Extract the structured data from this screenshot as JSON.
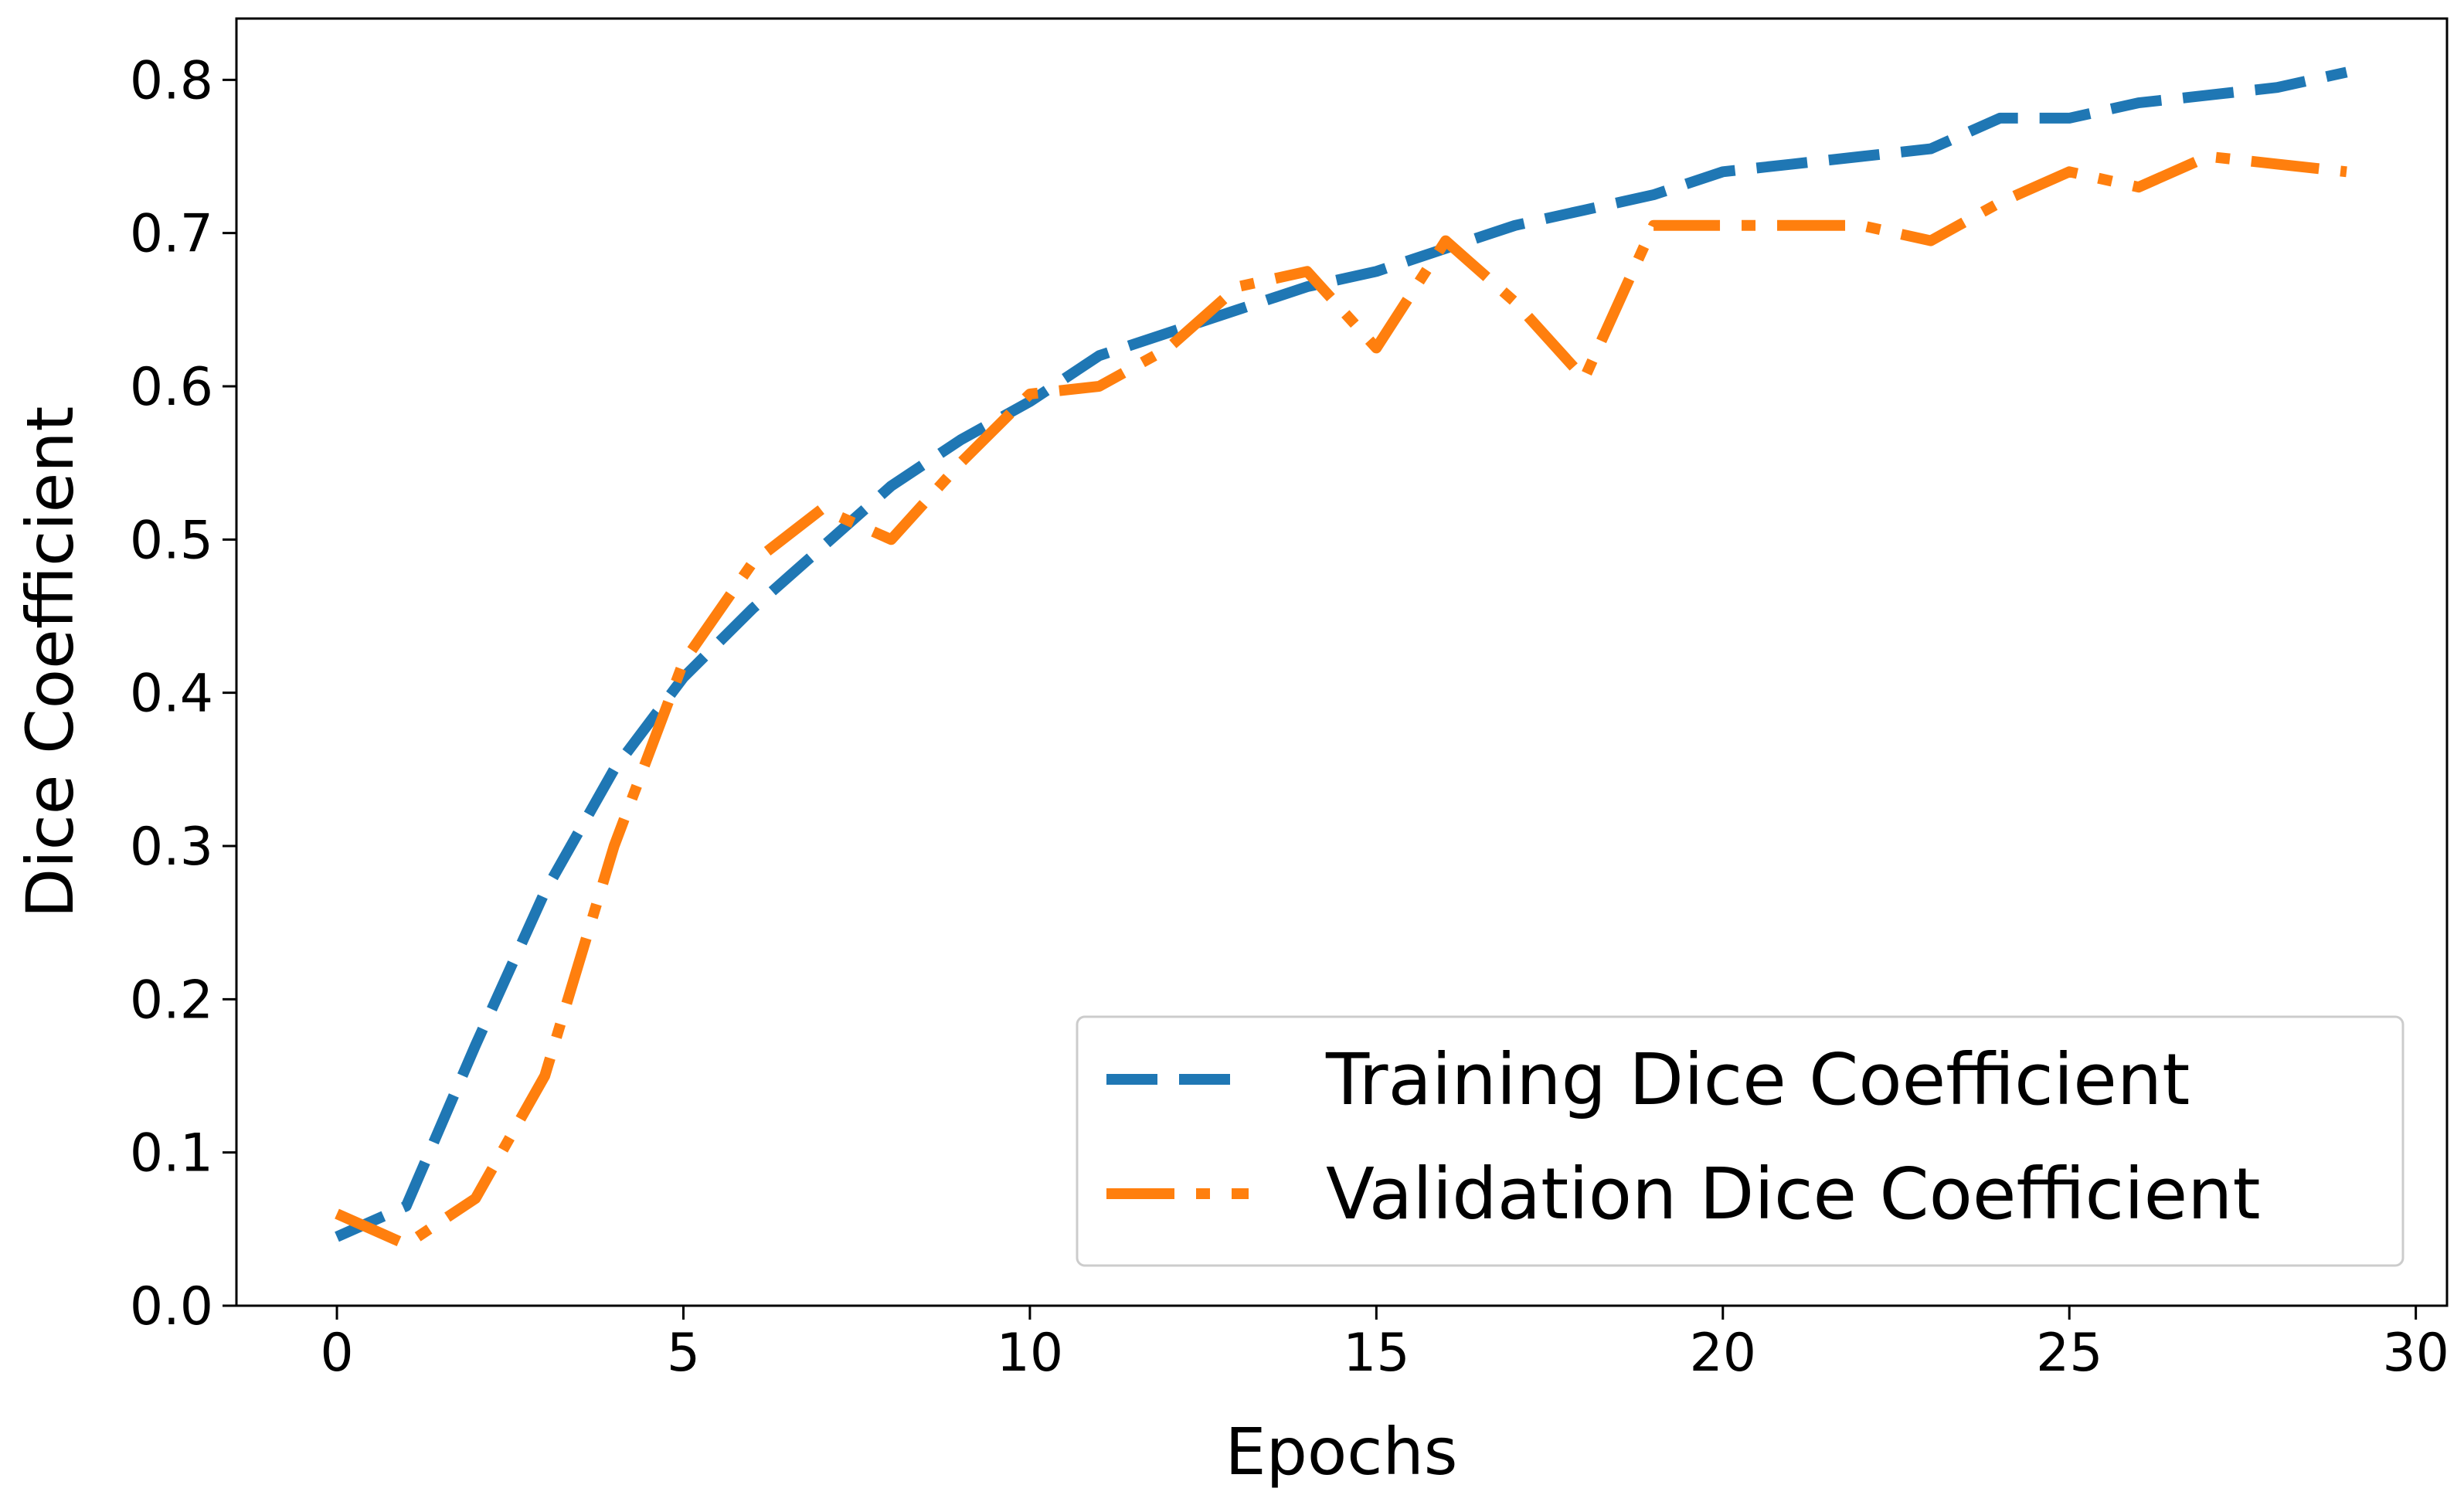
{
  "chart_data": {
    "type": "line",
    "title": "",
    "xlabel": "Epochs",
    "ylabel": "Dice Coefficient",
    "xlim": [
      -1.45,
      30.45
    ],
    "ylim": [
      0.0,
      0.84
    ],
    "xticks": [
      0,
      5,
      10,
      15,
      20,
      25,
      30
    ],
    "xtick_labels": [
      "0",
      "5",
      "10",
      "15",
      "20",
      "25",
      "30"
    ],
    "yticks": [
      0.0,
      0.1,
      0.2,
      0.3,
      0.4,
      0.5,
      0.6,
      0.7,
      0.8
    ],
    "ytick_labels": [
      "0.0",
      "0.1",
      "0.2",
      "0.3",
      "0.4",
      "0.5",
      "0.6",
      "0.7",
      "0.8"
    ],
    "grid": false,
    "legend_position": "bottom-right",
    "x": [
      0,
      1,
      2,
      3,
      4,
      5,
      6,
      7,
      8,
      9,
      10,
      11,
      12,
      13,
      14,
      15,
      16,
      17,
      18,
      19,
      20,
      21,
      22,
      23,
      24,
      25,
      26,
      27,
      28,
      29
    ],
    "series": [
      {
        "name": "Training Dice Coefficient",
        "color": "#1f77b4",
        "style": "dashed",
        "values": [
          0.045,
          0.065,
          0.17,
          0.27,
          0.35,
          0.41,
          0.455,
          0.495,
          0.535,
          0.565,
          0.59,
          0.62,
          0.635,
          0.65,
          0.665,
          0.675,
          0.69,
          0.705,
          0.715,
          0.725,
          0.74,
          0.745,
          0.75,
          0.755,
          0.775,
          0.775,
          0.785,
          0.79,
          0.795,
          0.805
        ]
      },
      {
        "name": "Validation Dice Coefficient",
        "color": "#ff7f0e",
        "style": "dashdot",
        "values": [
          0.06,
          0.04,
          0.07,
          0.15,
          0.3,
          0.42,
          0.485,
          0.52,
          0.5,
          0.55,
          0.595,
          0.6,
          0.625,
          0.665,
          0.675,
          0.625,
          0.695,
          0.655,
          0.605,
          0.705,
          0.705,
          0.705,
          0.705,
          0.695,
          0.72,
          0.74,
          0.73,
          0.75,
          0.745,
          0.74
        ]
      }
    ]
  }
}
